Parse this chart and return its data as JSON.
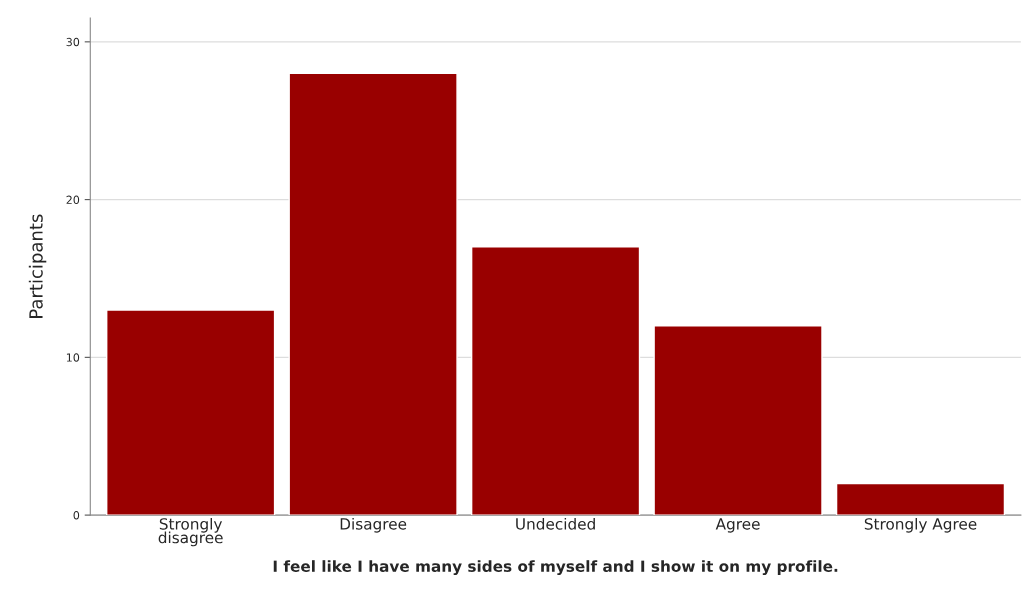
{
  "chart_data": {
    "type": "bar",
    "categories": [
      "Strongly\ndisagree",
      "Disagree",
      "Undecided",
      "Agree",
      "Strongly Agree"
    ],
    "values": [
      13,
      28,
      17,
      12,
      2
    ],
    "color": "#990000",
    "xlabel": "I feel like I have many sides of myself and I show it on my profile.",
    "ylabel": "Participants",
    "ylim": [
      0,
      31.5
    ],
    "yticks": [
      0,
      10,
      20,
      30
    ],
    "grid": "y"
  }
}
